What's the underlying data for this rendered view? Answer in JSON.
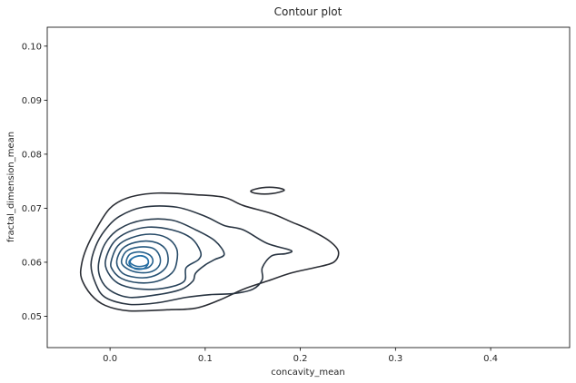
{
  "chart_data": {
    "type": "contour",
    "title": "Contour plot",
    "xlabel": "concavity_mean",
    "ylabel": "fractal_dimension_mean",
    "xlim": [
      -0.066,
      0.483
    ],
    "ylim": [
      0.0442,
      0.1035
    ],
    "x_ticks": [
      0.0,
      0.1,
      0.2,
      0.3,
      0.4
    ],
    "x_tick_labels": [
      "0.0",
      "0.1",
      "0.2",
      "0.3",
      "0.4"
    ],
    "y_ticks": [
      0.05,
      0.06,
      0.07,
      0.08,
      0.09,
      0.1
    ],
    "y_tick_labels": [
      "0.05",
      "0.06",
      "0.07",
      "0.08",
      "0.09",
      "0.10"
    ],
    "grid": false,
    "colormap_dark": "#2a2d34",
    "colormap_light": "#2470a8",
    "contours": [
      {
        "level": 1,
        "points": [
          [
            -0.03,
            0.0595
          ],
          [
            -0.025,
            0.0625
          ],
          [
            -0.015,
            0.066
          ],
          [
            0.0,
            0.07
          ],
          [
            0.02,
            0.072
          ],
          [
            0.05,
            0.0728
          ],
          [
            0.09,
            0.0725
          ],
          [
            0.12,
            0.072
          ],
          [
            0.14,
            0.0705
          ],
          [
            0.17,
            0.069
          ],
          [
            0.19,
            0.0675
          ],
          [
            0.21,
            0.066
          ],
          [
            0.23,
            0.064
          ],
          [
            0.24,
            0.062
          ],
          [
            0.235,
            0.06
          ],
          [
            0.215,
            0.059
          ],
          [
            0.19,
            0.058
          ],
          [
            0.165,
            0.0565
          ],
          [
            0.14,
            0.055
          ],
          [
            0.115,
            0.053
          ],
          [
            0.09,
            0.0515
          ],
          [
            0.06,
            0.0512
          ],
          [
            0.02,
            0.051
          ],
          [
            -0.005,
            0.052
          ],
          [
            -0.02,
            0.054
          ],
          [
            -0.03,
            0.057
          ]
        ]
      },
      {
        "level": 2,
        "points": [
          [
            -0.02,
            0.0595
          ],
          [
            -0.015,
            0.063
          ],
          [
            -0.005,
            0.066
          ],
          [
            0.01,
            0.0685
          ],
          [
            0.035,
            0.0702
          ],
          [
            0.07,
            0.0702
          ],
          [
            0.1,
            0.0685
          ],
          [
            0.12,
            0.0668
          ],
          [
            0.14,
            0.066
          ],
          [
            0.165,
            0.0635
          ],
          [
            0.19,
            0.0622
          ],
          [
            0.185,
            0.0616
          ],
          [
            0.17,
            0.0612
          ],
          [
            0.16,
            0.059
          ],
          [
            0.16,
            0.0568
          ],
          [
            0.15,
            0.055
          ],
          [
            0.13,
            0.0542
          ],
          [
            0.105,
            0.054
          ],
          [
            0.08,
            0.0535
          ],
          [
            0.05,
            0.0525
          ],
          [
            0.02,
            0.0522
          ],
          [
            -0.005,
            0.0535
          ],
          [
            -0.015,
            0.056
          ]
        ]
      },
      {
        "level": 3,
        "points": [
          [
            -0.012,
            0.0598
          ],
          [
            -0.005,
            0.0635
          ],
          [
            0.01,
            0.0662
          ],
          [
            0.035,
            0.0678
          ],
          [
            0.065,
            0.0678
          ],
          [
            0.09,
            0.066
          ],
          [
            0.11,
            0.064
          ],
          [
            0.12,
            0.0615
          ],
          [
            0.11,
            0.0605
          ],
          [
            0.1,
            0.0595
          ],
          [
            0.09,
            0.058
          ],
          [
            0.087,
            0.0565
          ],
          [
            0.075,
            0.055
          ],
          [
            0.05,
            0.054
          ],
          [
            0.02,
            0.0535
          ],
          [
            0.0,
            0.0548
          ],
          [
            -0.01,
            0.057
          ]
        ]
      },
      {
        "level": 4,
        "points": [
          [
            -0.005,
            0.06
          ],
          [
            0.003,
            0.0635
          ],
          [
            0.018,
            0.0655
          ],
          [
            0.04,
            0.0665
          ],
          [
            0.065,
            0.066
          ],
          [
            0.085,
            0.0645
          ],
          [
            0.095,
            0.062
          ],
          [
            0.093,
            0.0605
          ],
          [
            0.08,
            0.059
          ],
          [
            0.078,
            0.0565
          ],
          [
            0.06,
            0.0553
          ],
          [
            0.035,
            0.055
          ],
          [
            0.012,
            0.0558
          ],
          [
            0.0,
            0.0575
          ]
        ]
      },
      {
        "level": 5,
        "points": [
          [
            0.001,
            0.06
          ],
          [
            0.008,
            0.063
          ],
          [
            0.022,
            0.0645
          ],
          [
            0.042,
            0.0652
          ],
          [
            0.06,
            0.0645
          ],
          [
            0.07,
            0.0625
          ],
          [
            0.07,
            0.06
          ],
          [
            0.065,
            0.058
          ],
          [
            0.05,
            0.0565
          ],
          [
            0.03,
            0.0562
          ],
          [
            0.012,
            0.057
          ],
          [
            0.003,
            0.0585
          ]
        ]
      },
      {
        "level": 6,
        "points": [
          [
            0.007,
            0.06
          ],
          [
            0.013,
            0.0625
          ],
          [
            0.027,
            0.0637
          ],
          [
            0.045,
            0.0638
          ],
          [
            0.058,
            0.0625
          ],
          [
            0.061,
            0.0602
          ],
          [
            0.056,
            0.0585
          ],
          [
            0.043,
            0.0573
          ],
          [
            0.027,
            0.0572
          ],
          [
            0.013,
            0.058
          ]
        ]
      },
      {
        "level": 7,
        "points": [
          [
            0.012,
            0.06
          ],
          [
            0.017,
            0.062
          ],
          [
            0.03,
            0.0628
          ],
          [
            0.045,
            0.0626
          ],
          [
            0.052,
            0.0612
          ],
          [
            0.052,
            0.0595
          ],
          [
            0.044,
            0.0583
          ],
          [
            0.03,
            0.0581
          ],
          [
            0.018,
            0.0588
          ]
        ]
      },
      {
        "level": 8,
        "points": [
          [
            0.017,
            0.06
          ],
          [
            0.021,
            0.0615
          ],
          [
            0.032,
            0.0619
          ],
          [
            0.042,
            0.0613
          ],
          [
            0.045,
            0.0601
          ],
          [
            0.04,
            0.059
          ],
          [
            0.03,
            0.0588
          ],
          [
            0.021,
            0.0592
          ]
        ]
      },
      {
        "level": 9,
        "points": [
          [
            0.021,
            0.06
          ],
          [
            0.025,
            0.0609
          ],
          [
            0.033,
            0.0612
          ],
          [
            0.039,
            0.0607
          ],
          [
            0.04,
            0.0598
          ],
          [
            0.035,
            0.0593
          ],
          [
            0.027,
            0.0593
          ]
        ]
      },
      {
        "level": 10,
        "points": [
          [
            0.02,
            0.0598
          ],
          [
            0.023,
            0.0607
          ],
          [
            0.032,
            0.0612
          ],
          [
            0.039,
            0.0607
          ],
          [
            0.04,
            0.0597
          ],
          [
            0.035,
            0.0588
          ],
          [
            0.026,
            0.0588
          ]
        ]
      },
      {
        "level": 1,
        "points": [
          [
            0.148,
            0.0732
          ],
          [
            0.16,
            0.0738
          ],
          [
            0.175,
            0.0738
          ],
          [
            0.183,
            0.0733
          ],
          [
            0.17,
            0.0727
          ],
          [
            0.155,
            0.0727
          ]
        ]
      }
    ]
  }
}
